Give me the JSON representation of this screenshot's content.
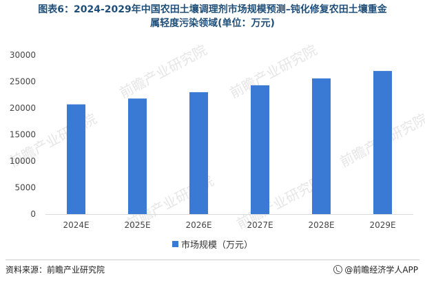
{
  "title_line1": "图表6：2024-2029年中国农田土壤调理剂市场规模预测–钝化修复农田土壤重金",
  "title_line2": "属轻度污染领域(单位：万元)",
  "source": "资料来源：前瞻产业研究院",
  "credit": "@前瞻经济学人APP",
  "watermark": "前瞻产业研究院",
  "colors": {
    "bar": "#3a7ad5",
    "title": "#1f4e79",
    "axis": "#d9d9d9",
    "tick_text": "#444444"
  },
  "chart_data": {
    "type": "bar",
    "categories": [
      "2024E",
      "2025E",
      "2026E",
      "2027E",
      "2028E",
      "2029E"
    ],
    "series": [
      {
        "name": "市场规模（万元）",
        "values": [
          20700,
          21800,
          23000,
          24300,
          25600,
          27000
        ]
      }
    ],
    "ylim": [
      0,
      30000
    ],
    "yticks": [
      0,
      5000,
      10000,
      15000,
      20000,
      25000,
      30000
    ],
    "grid": false,
    "legend_position": "bottom"
  }
}
